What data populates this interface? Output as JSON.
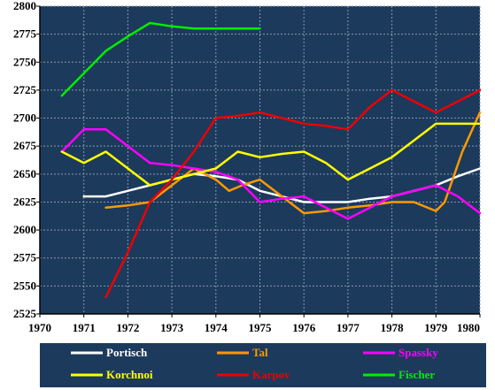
{
  "chart_data": {
    "type": "line",
    "title": "",
    "xlabel": "",
    "ylabel": "",
    "xlim": [
      1970,
      1980
    ],
    "ylim": [
      2525,
      2800
    ],
    "x_ticks": [
      1970,
      1971,
      1972,
      1973,
      1974,
      1975,
      1976,
      1977,
      1978,
      1979,
      1980
    ],
    "y_ticks": [
      2525,
      2550,
      2575,
      2600,
      2625,
      2650,
      2675,
      2700,
      2725,
      2750,
      2775,
      2800
    ],
    "x_tick_labels": [
      "1970",
      "1971",
      "1972",
      "1973",
      "1974",
      "1975",
      "1976",
      "1977",
      "1978",
      "1979",
      "1980"
    ],
    "y_tick_labels": [
      "2525",
      "2550",
      "2575",
      "2600",
      "2625",
      "2650",
      "2675",
      "2700",
      "2725",
      "2750",
      "2775",
      "2800"
    ],
    "grid": true,
    "plot_background": "#1c3a5c",
    "grid_color": "#8899aa",
    "legend_background": "#1c3a5c",
    "legend_position": "bottom",
    "series": [
      {
        "name": "Portisch",
        "color": "#ffffff",
        "x": [
          1971.0,
          1971.5,
          1972.0,
          1972.5,
          1973.0,
          1973.5,
          1974.0,
          1974.5,
          1975.0,
          1975.5,
          1976.0,
          1976.5,
          1977.0,
          1977.5,
          1978.0,
          1978.5,
          1979.0,
          1979.5,
          1980.0
        ],
        "values": [
          2630,
          2630,
          2635,
          2640,
          2645,
          2650,
          2648,
          2645,
          2635,
          2630,
          2625,
          2625,
          2625,
          2628,
          2630,
          2635,
          2640,
          2648,
          2655
        ]
      },
      {
        "name": "Tal",
        "color": "#ff9900",
        "x": [
          1971.5,
          1972.0,
          1972.5,
          1973.0,
          1973.5,
          1974.0,
          1974.3,
          1974.6,
          1975.0,
          1975.5,
          1976.0,
          1976.5,
          1977.0,
          1977.5,
          1978.0,
          1978.5,
          1979.0,
          1979.2,
          1979.6,
          1980.0
        ],
        "values": [
          2620,
          2622,
          2625,
          2640,
          2655,
          2645,
          2635,
          2640,
          2645,
          2630,
          2615,
          2617,
          2620,
          2622,
          2625,
          2625,
          2617,
          2625,
          2670,
          2705
        ]
      },
      {
        "name": "Spassky",
        "color": "#ff00ff",
        "x": [
          1970.5,
          1971.0,
          1971.5,
          1972.0,
          1972.5,
          1973.0,
          1973.5,
          1974.0,
          1974.5,
          1975.0,
          1975.5,
          1976.0,
          1976.5,
          1977.0,
          1977.5,
          1978.0,
          1978.5,
          1979.0,
          1979.5,
          1980.0
        ],
        "values": [
          2670,
          2690,
          2690,
          2675,
          2660,
          2658,
          2655,
          2652,
          2645,
          2625,
          2628,
          2630,
          2620,
          2610,
          2620,
          2630,
          2635,
          2640,
          2630,
          2615
        ]
      },
      {
        "name": "Korchnoi",
        "color": "#ffff00",
        "x": [
          1970.5,
          1971.0,
          1971.5,
          1972.0,
          1972.5,
          1973.0,
          1973.5,
          1974.0,
          1974.5,
          1975.0,
          1975.5,
          1976.0,
          1976.5,
          1977.0,
          1977.5,
          1978.0,
          1978.5,
          1979.0,
          1979.5,
          1980.0
        ],
        "values": [
          2670,
          2660,
          2670,
          2655,
          2640,
          2645,
          2650,
          2655,
          2670,
          2665,
          2668,
          2670,
          2660,
          2645,
          2655,
          2665,
          2680,
          2695,
          2695,
          2695
        ]
      },
      {
        "name": "Karpov",
        "color": "#ee0000",
        "x": [
          1971.5,
          1972.0,
          1972.5,
          1973.0,
          1973.5,
          1974.0,
          1974.5,
          1975.0,
          1975.5,
          1976.0,
          1976.5,
          1977.0,
          1977.5,
          1978.0,
          1978.5,
          1979.0,
          1979.5,
          1980.0
        ],
        "values": [
          2540,
          2580,
          2625,
          2645,
          2670,
          2700,
          2702,
          2705,
          2700,
          2695,
          2693,
          2690,
          2710,
          2725,
          2715,
          2705,
          2715,
          2725
        ]
      },
      {
        "name": "Fischer",
        "color": "#00ee00",
        "x": [
          1970.5,
          1971.0,
          1971.5,
          1972.0,
          1972.5,
          1973.0,
          1973.5,
          1974.0,
          1974.5,
          1975.0
        ],
        "values": [
          2720,
          2740,
          2760,
          2773,
          2785,
          2782,
          2780,
          2780,
          2780,
          2780
        ]
      }
    ]
  }
}
